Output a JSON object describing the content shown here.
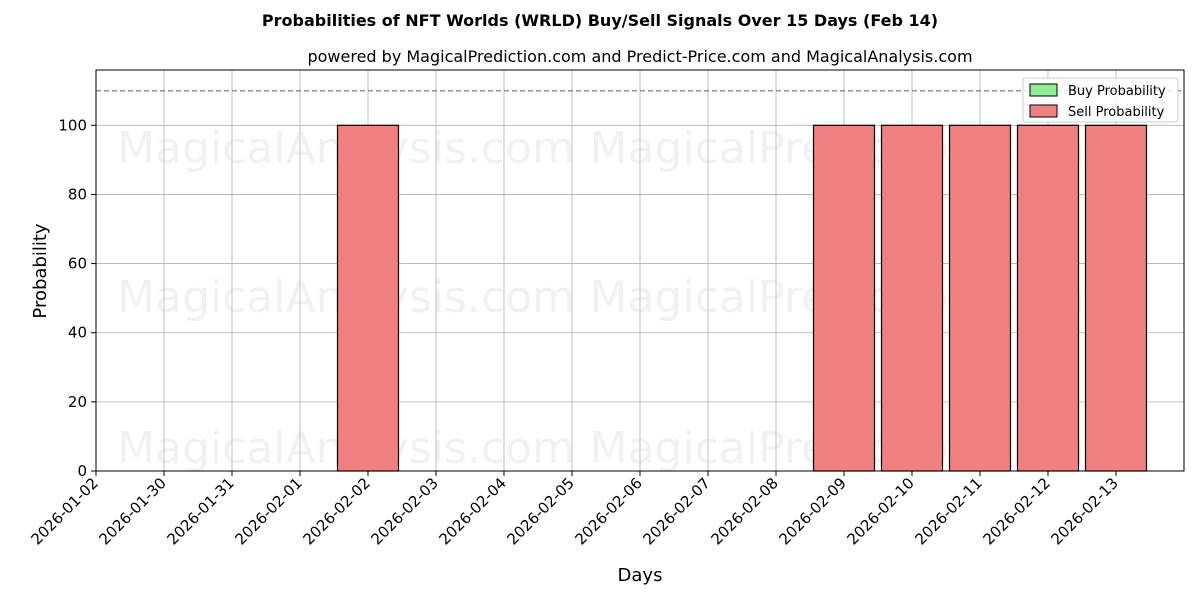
{
  "chart_data": {
    "type": "bar",
    "title": "Probabilities of NFT Worlds (WRLD) Buy/Sell Signals Over 15 Days (Feb 14)",
    "subtitle": "powered by MagicalPrediction.com and Predict-Price.com and MagicalAnalysis.com",
    "xlabel": "Days",
    "ylabel": "Probability",
    "ylim": [
      0,
      116
    ],
    "yticks": [
      0,
      20,
      40,
      60,
      80,
      100
    ],
    "categories": [
      "2026-01-02",
      "2026-01-30",
      "2026-01-31",
      "2026-02-01",
      "2026-02-02",
      "2026-02-03",
      "2026-02-04",
      "2026-02-05",
      "2026-02-06",
      "2026-02-07",
      "2026-02-08",
      "2026-02-09",
      "2026-02-10",
      "2026-02-11",
      "2026-02-12",
      "2026-02-13"
    ],
    "series": [
      {
        "name": "Buy Probability",
        "color": "#90ee90",
        "values": [
          0,
          0,
          0,
          0,
          0,
          0,
          0,
          0,
          0,
          0,
          0,
          0,
          0,
          0,
          0,
          0
        ]
      },
      {
        "name": "Sell Probability",
        "color": "#f08080",
        "values": [
          0,
          0,
          0,
          0,
          100,
          0,
          0,
          0,
          0,
          0,
          0,
          100,
          100,
          100,
          100,
          100
        ]
      }
    ],
    "reference_line": 110,
    "grid": true,
    "legend_position": "top-right",
    "watermarks": [
      "MagicalAnalysis.com",
      "MagicalPrediction.com"
    ]
  }
}
